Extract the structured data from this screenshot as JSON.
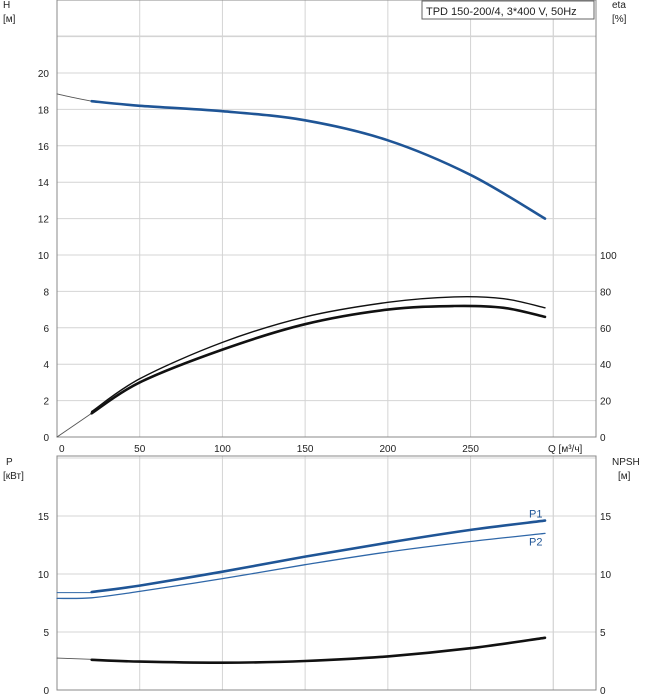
{
  "title_box": "TPD 150-200/4, 3*400 V, 50Hz",
  "colors": {
    "blue": "#1f5596",
    "blue_light": "#2f67a8",
    "black": "#111111",
    "grid": "#d4d4d4"
  },
  "chart_data": [
    {
      "type": "line",
      "name": "head-efficiency",
      "ylabel_left": "H",
      "yunit_left": "[м]",
      "ylabel_right": "eta",
      "yunit_right": "[%]",
      "xlabel": "Q [м³/ч]",
      "xlim": [
        0,
        300
      ],
      "ylim_left": [
        0,
        22
      ],
      "ylim_right": [
        0,
        220
      ],
      "xticks": [
        0,
        50,
        100,
        150,
        200,
        250
      ],
      "yticks_left": [
        0,
        2,
        4,
        6,
        8,
        10,
        12,
        14,
        16,
        18,
        20
      ],
      "yticks_right": [
        0,
        20,
        40,
        60,
        80,
        100
      ],
      "grid": true,
      "series": [
        {
          "key": "H_ext",
          "axis": "left",
          "style": "thin-gray",
          "x": [
            0,
            10,
            21
          ],
          "y": [
            18.85,
            18.65,
            18.45
          ]
        },
        {
          "key": "H",
          "axis": "left",
          "style": "blue-thick",
          "x": [
            21,
            50,
            100,
            150,
            200,
            250,
            295
          ],
          "y": [
            18.45,
            18.2,
            17.9,
            17.4,
            16.3,
            14.4,
            12.0
          ]
        },
        {
          "key": "eta_ext",
          "axis": "right",
          "style": "thin-gray",
          "x": [
            0,
            21
          ],
          "y": [
            0,
            13
          ]
        },
        {
          "key": "eta_top",
          "axis": "right",
          "style": "black-thin",
          "x": [
            21,
            50,
            100,
            150,
            200,
            240,
            270,
            295
          ],
          "y": [
            14,
            32,
            52,
            66,
            74,
            77,
            76,
            71
          ]
        },
        {
          "key": "eta_bottom",
          "axis": "right",
          "style": "black-thick",
          "x": [
            21,
            50,
            100,
            150,
            200,
            240,
            270,
            295
          ],
          "y": [
            13,
            30,
            48,
            62,
            70,
            72,
            71,
            66
          ]
        }
      ]
    },
    {
      "type": "line",
      "name": "power-npsh",
      "ylabel_left": "P",
      "yunit_left": "[кВт]",
      "ylabel_right": "NPSH",
      "yunit_right": "[м]",
      "xlim": [
        0,
        300
      ],
      "ylim_left": [
        0,
        20
      ],
      "ylim_right": [
        0,
        20
      ],
      "yticks_left": [
        0,
        5,
        10,
        15
      ],
      "yticks_right": [
        0,
        5,
        10,
        15
      ],
      "grid": true,
      "series": [
        {
          "key": "P1_ext",
          "axis": "left",
          "style": "thin-blue",
          "x": [
            0,
            21
          ],
          "y": [
            8.4,
            8.4
          ]
        },
        {
          "name": "P1",
          "axis": "left",
          "style": "blue-thick",
          "x": [
            21,
            50,
            100,
            150,
            200,
            250,
            295
          ],
          "y": [
            8.45,
            9.0,
            10.2,
            11.5,
            12.7,
            13.8,
            14.6
          ]
        },
        {
          "name": "P2",
          "axis": "left",
          "style": "blue-thin",
          "x": [
            0,
            21,
            50,
            100,
            150,
            200,
            250,
            295
          ],
          "y": [
            7.9,
            7.95,
            8.5,
            9.6,
            10.8,
            11.9,
            12.8,
            13.5
          ]
        },
        {
          "key": "NPSH_ext",
          "axis": "right",
          "style": "thin-gray",
          "x": [
            0,
            21
          ],
          "y": [
            2.75,
            2.65
          ]
        },
        {
          "key": "NPSH",
          "axis": "right",
          "style": "black-thick",
          "x": [
            21,
            50,
            100,
            150,
            200,
            250,
            295
          ],
          "y": [
            2.6,
            2.45,
            2.35,
            2.5,
            2.9,
            3.6,
            4.5
          ]
        }
      ]
    }
  ]
}
